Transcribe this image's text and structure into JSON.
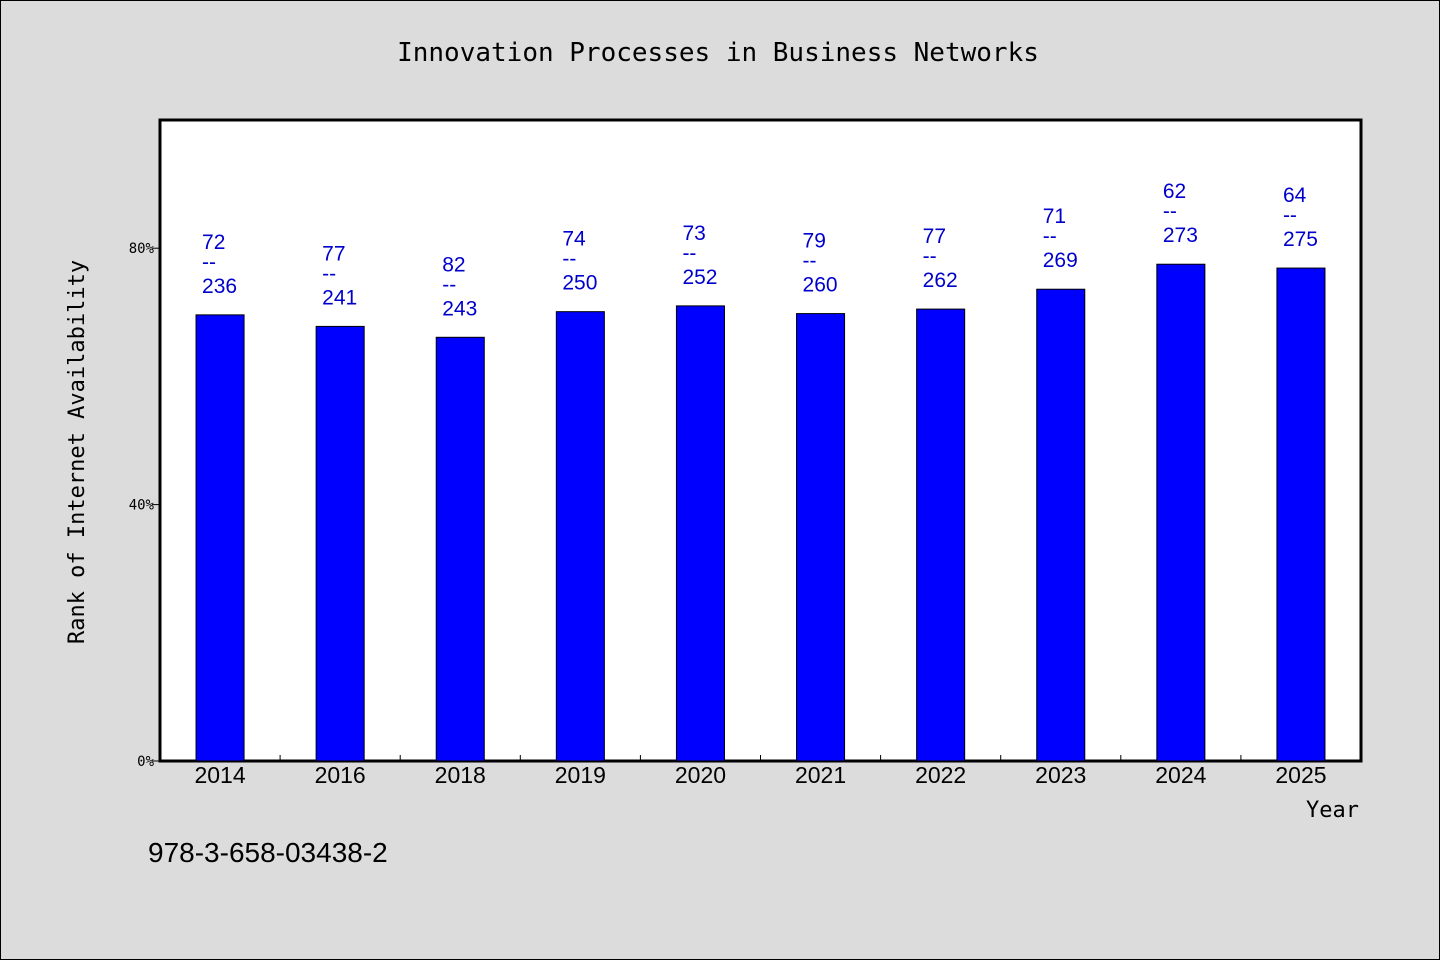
{
  "chart_data": {
    "type": "bar",
    "title": "Innovation Processes in Business Networks",
    "xlabel": "Year",
    "ylabel": "Rank of Internet Availability",
    "categories": [
      "2014",
      "2016",
      "2018",
      "2019",
      "2020",
      "2021",
      "2022",
      "2023",
      "2024",
      "2025"
    ],
    "values": [
      69.6,
      67.8,
      66.1,
      70.1,
      71.0,
      69.8,
      70.5,
      73.6,
      77.5,
      76.9
    ],
    "label_top": [
      "72",
      "77",
      "82",
      "74",
      "73",
      "79",
      "77",
      "71",
      "62",
      "64"
    ],
    "label_sep": "--",
    "label_bottom": [
      "236",
      "241",
      "243",
      "250",
      "252",
      "260",
      "262",
      "269",
      "273",
      "275"
    ],
    "yticks": [
      0,
      40,
      80
    ],
    "ytick_labels": [
      "0%",
      "40%",
      "80%"
    ],
    "ylim": [
      0,
      100
    ],
    "grid": false,
    "colors": {
      "bar": "#0000ff",
      "label": "#0000cc",
      "background": "#dcdcdc",
      "plot_bg": "#ffffff"
    }
  },
  "footer": {
    "isbn": "978-3-658-03438-2"
  }
}
